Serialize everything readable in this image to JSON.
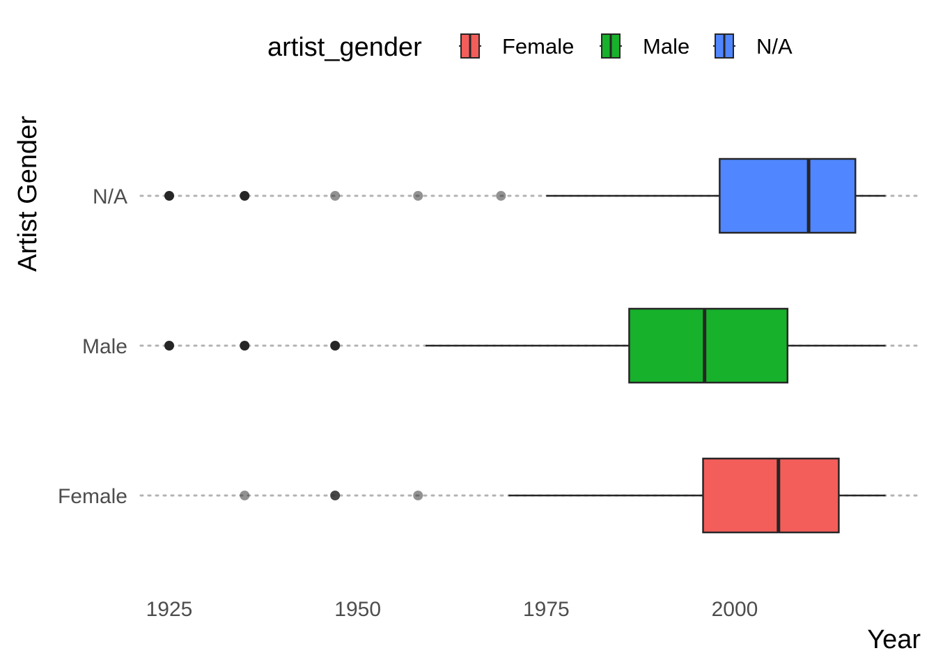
{
  "chart_data": {
    "type": "boxplot",
    "orientation": "horizontal",
    "xlabel": "Year",
    "ylabel": "Artist Gender",
    "xlim": [
      1913,
      2024
    ],
    "x_ticks": [
      1925,
      1950,
      1975,
      2000
    ],
    "x_tick_labels": [
      "1925",
      "1950",
      "1975",
      "2000"
    ],
    "grid": "dotted horizontal lines at each category",
    "legend": {
      "title": "artist_gender",
      "position": "top",
      "entries": [
        "Female",
        "Male",
        "N/A"
      ]
    },
    "categories": [
      "Female",
      "Male",
      "N/A"
    ],
    "series": [
      {
        "name": "Female",
        "color": "#F35E5A",
        "whisker_low": 1970,
        "q1": 1995.8,
        "median": 2005.8,
        "q3": 2013.8,
        "whisker_high": 2020,
        "outliers": [
          {
            "x": 1935,
            "alpha": 0.5
          },
          {
            "x": 1947,
            "alpha": 0.85
          },
          {
            "x": 1958,
            "alpha": 0.5
          }
        ]
      },
      {
        "name": "Male",
        "color": "#17B12B",
        "whisker_low": 1959,
        "q1": 1986,
        "median": 1996,
        "q3": 2007,
        "whisker_high": 2020,
        "outliers": [
          {
            "x": 1925,
            "alpha": 1.0
          },
          {
            "x": 1935,
            "alpha": 1.0
          },
          {
            "x": 1947,
            "alpha": 1.0
          }
        ]
      },
      {
        "name": "N/A",
        "color": "#5086FF",
        "whisker_low": 1975,
        "q1": 1998,
        "median": 2009.8,
        "q3": 2016,
        "whisker_high": 2020,
        "outliers": [
          {
            "x": 1925,
            "alpha": 1.0
          },
          {
            "x": 1935,
            "alpha": 1.0
          },
          {
            "x": 1947,
            "alpha": 0.5
          },
          {
            "x": 1958,
            "alpha": 0.5
          },
          {
            "x": 1969,
            "alpha": 0.5
          }
        ]
      }
    ]
  }
}
